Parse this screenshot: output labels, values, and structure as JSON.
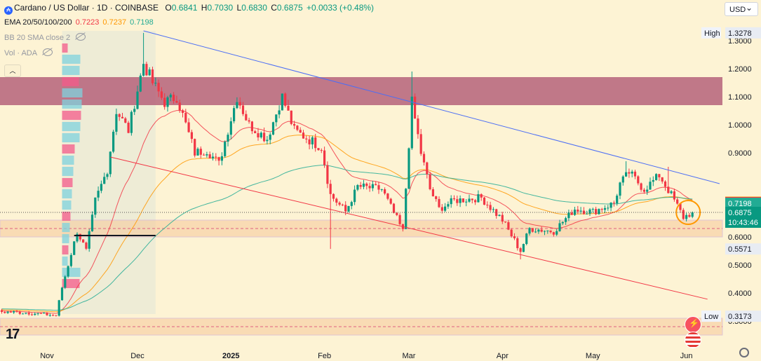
{
  "header": {
    "symbol_icon": "cardano-logo-icon",
    "title": "Cardano / US Dollar · 1D · COINBASE",
    "ohlc": [
      {
        "label": "O",
        "value": "0.6841"
      },
      {
        "label": "H",
        "value": "0.7030"
      },
      {
        "label": "L",
        "value": "0.6830"
      },
      {
        "label": "C",
        "value": "0.6875"
      }
    ],
    "change": "+0.0033 (+0.48%)",
    "change_color": "#089981"
  },
  "indicators": {
    "ema_label": "EMA 20/50/100/200",
    "ema_values": [
      {
        "value": "0.7223",
        "color": "#f23645"
      },
      {
        "value": "0.7237",
        "color": "#ff9800"
      },
      {
        "value": "0.7198",
        "color": "#22ab94"
      }
    ],
    "bb_label": "BB 20 SMA close 2",
    "vol_label": "Vol · ADA"
  },
  "currency_selector": "USD",
  "colors": {
    "up": "#089981",
    "down": "#f23645",
    "ema20": "#f23645",
    "ema50": "#ff9800",
    "ema100": "#22ab94",
    "resistance_zone": "#b5627a",
    "support_zone": "#f7c89a",
    "downtrend_line": "#4c6ef5",
    "lower_channel": "#f23645",
    "highlight_circle": "#ff9800",
    "background": "#fdf3d4"
  },
  "chart_data": {
    "type": "candlestick",
    "title": "Cardano / US Dollar · 1D · COINBASE",
    "x_tick_labels": [
      "Nov",
      "Dec",
      "2025",
      "Feb",
      "Mar",
      "Apr",
      "May",
      "Jun"
    ],
    "y_tick_labels": [
      "1.3000",
      "1.2000",
      "1.1000",
      "1.0000",
      "0.9000",
      "0.6000",
      "0.5000",
      "0.4000",
      "0.3000"
    ],
    "ylim": [
      0.25,
      1.45
    ],
    "grid": false,
    "price_labels": [
      {
        "label": "High",
        "value": 1.3278,
        "text": "1.3278"
      },
      {
        "label": "",
        "value": 0.7237,
        "text": "0.7237",
        "color": "#ff9800"
      },
      {
        "label": "",
        "value": 0.7223,
        "text": "0.7223",
        "color": "#f23645"
      },
      {
        "label": "",
        "value": 0.7198,
        "text": "0.7198",
        "color": "#22ab94"
      },
      {
        "label": "",
        "value": 0.6875,
        "text": "0.6875",
        "color": "#089981",
        "countdown": "10:43:46"
      },
      {
        "label": "",
        "value": 0.5571,
        "text": "0.5571"
      },
      {
        "label": "Low",
        "value": 0.3173,
        "text": "0.3173"
      }
    ],
    "zones": [
      {
        "name": "resistance",
        "from": 1.07,
        "to": 1.17
      },
      {
        "name": "support",
        "from": 0.6,
        "to": 0.66
      },
      {
        "name": "low-zone",
        "from": 0.25,
        "to": 0.31
      }
    ],
    "trendlines": [
      {
        "name": "downtrend",
        "from": {
          "date": "2024-12-03",
          "price": 1.335
        },
        "to": {
          "date": "2025-06-12",
          "price": 0.79
        }
      },
      {
        "name": "lower-channel",
        "from": {
          "date": "2024-11-22",
          "price": 0.885
        },
        "to": {
          "date": "2025-06-08",
          "price": 0.378
        }
      },
      {
        "name": "support-line",
        "from": {
          "date": "2024-11-10",
          "price": 0.605
        },
        "to": {
          "date": "2024-12-07",
          "price": 0.605
        }
      }
    ],
    "keyframes": [
      {
        "date": "2024-09-01",
        "price": 0.35
      },
      {
        "date": "2024-10-25",
        "price": 0.33
      },
      {
        "date": "2024-11-04",
        "price": 0.32
      },
      {
        "date": "2024-11-06",
        "price": 0.42
      },
      {
        "date": "2024-11-11",
        "price": 0.62
      },
      {
        "date": "2024-11-14",
        "price": 0.55
      },
      {
        "date": "2024-11-17",
        "price": 0.73
      },
      {
        "date": "2024-11-21",
        "price": 0.84
      },
      {
        "date": "2024-11-24",
        "price": 1.05
      },
      {
        "date": "2024-11-28",
        "price": 0.98
      },
      {
        "date": "2024-12-03",
        "price": 1.22
      },
      {
        "date": "2024-12-06",
        "price": 1.15
      },
      {
        "date": "2024-12-10",
        "price": 1.08
      },
      {
        "date": "2024-12-14",
        "price": 1.1
      },
      {
        "date": "2024-12-20",
        "price": 0.9
      },
      {
        "date": "2024-12-24",
        "price": 0.91
      },
      {
        "date": "2024-12-28",
        "price": 0.86
      },
      {
        "date": "2025-01-03",
        "price": 1.1
      },
      {
        "date": "2025-01-07",
        "price": 1.0
      },
      {
        "date": "2025-01-13",
        "price": 0.95
      },
      {
        "date": "2025-01-18",
        "price": 1.1
      },
      {
        "date": "2025-01-22",
        "price": 0.98
      },
      {
        "date": "2025-01-31",
        "price": 0.92
      },
      {
        "date": "2025-02-03",
        "price": 0.75
      },
      {
        "date": "2025-02-08",
        "price": 0.69
      },
      {
        "date": "2025-02-12",
        "price": 0.78
      },
      {
        "date": "2025-02-20",
        "price": 0.77
      },
      {
        "date": "2025-02-27",
        "price": 0.62
      },
      {
        "date": "2025-03-02",
        "price": 1.08
      },
      {
        "date": "2025-03-05",
        "price": 0.9
      },
      {
        "date": "2025-03-08",
        "price": 0.77
      },
      {
        "date": "2025-03-11",
        "price": 0.7
      },
      {
        "date": "2025-03-16",
        "price": 0.73
      },
      {
        "date": "2025-03-25",
        "price": 0.74
      },
      {
        "date": "2025-04-01",
        "price": 0.66
      },
      {
        "date": "2025-04-07",
        "price": 0.55
      },
      {
        "date": "2025-04-10",
        "price": 0.63
      },
      {
        "date": "2025-04-18",
        "price": 0.62
      },
      {
        "date": "2025-04-25",
        "price": 0.7
      },
      {
        "date": "2025-05-01",
        "price": 0.69
      },
      {
        "date": "2025-05-08",
        "price": 0.72
      },
      {
        "date": "2025-05-10",
        "price": 0.79
      },
      {
        "date": "2025-05-13",
        "price": 0.83
      },
      {
        "date": "2025-05-18",
        "price": 0.77
      },
      {
        "date": "2025-05-23",
        "price": 0.82
      },
      {
        "date": "2025-05-27",
        "price": 0.75
      },
      {
        "date": "2025-05-31",
        "price": 0.67
      },
      {
        "date": "2025-06-03",
        "price": 0.6875
      }
    ],
    "notable_wicks": [
      {
        "date": "2024-12-03",
        "high": 1.3278
      },
      {
        "date": "2025-02-03",
        "low": 0.5571
      },
      {
        "date": "2025-03-02",
        "high": 1.19
      },
      {
        "date": "2025-04-07",
        "low": 0.52
      },
      {
        "date": "2025-05-12",
        "high": 0.87
      },
      {
        "date": "2025-05-26",
        "high": 0.85
      }
    ]
  }
}
